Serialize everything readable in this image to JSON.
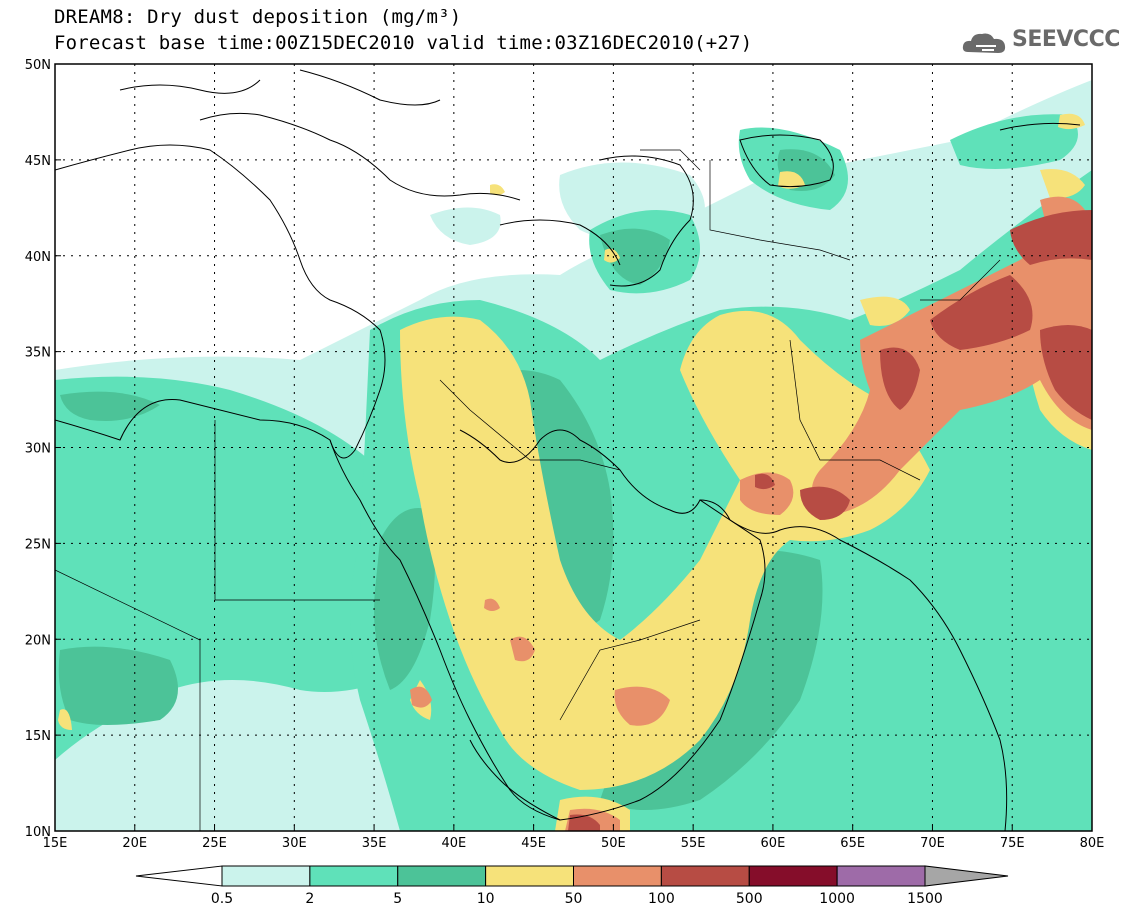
{
  "title": {
    "line1": "DREAM8: Dry dust deposition (mg/m³)",
    "line2": "Forecast base time:00Z15DEC2010 valid time:03Z16DEC2010(+27)"
  },
  "logo": {
    "text": "SEEVCCC",
    "icon": "cloud-icon"
  },
  "map": {
    "lon_range": [
      15,
      80
    ],
    "lat_range": [
      10,
      50
    ],
    "lon_ticks": [
      "15E",
      "20E",
      "25E",
      "30E",
      "35E",
      "40E",
      "45E",
      "50E",
      "55E",
      "60E",
      "65E",
      "70E",
      "75E",
      "80E"
    ],
    "lat_ticks": [
      "10N",
      "15N",
      "20N",
      "25N",
      "30N",
      "35N",
      "40N",
      "45N",
      "50N"
    ],
    "gridlines": "dotted"
  },
  "colorbar": {
    "labels": [
      "0.5",
      "2",
      "5",
      "10",
      "50",
      "100",
      "500",
      "1000",
      "1500"
    ],
    "colors": [
      "#cbf3ec",
      "#5fe1b9",
      "#4cc398",
      "#f6e27a",
      "#e8906a",
      "#b74c44",
      "#850d2a",
      "#9e6ba8"
    ],
    "low_extend_color": "#ffffff",
    "high_extend_color": "#a6a6a6"
  },
  "levels": {
    "l1": "#cbf3ec",
    "l2": "#5fe1b9",
    "l3": "#4cc398",
    "l4": "#f6e27a",
    "l5": "#e8906a",
    "l6": "#b74c44",
    "l7": "#850d2a"
  }
}
